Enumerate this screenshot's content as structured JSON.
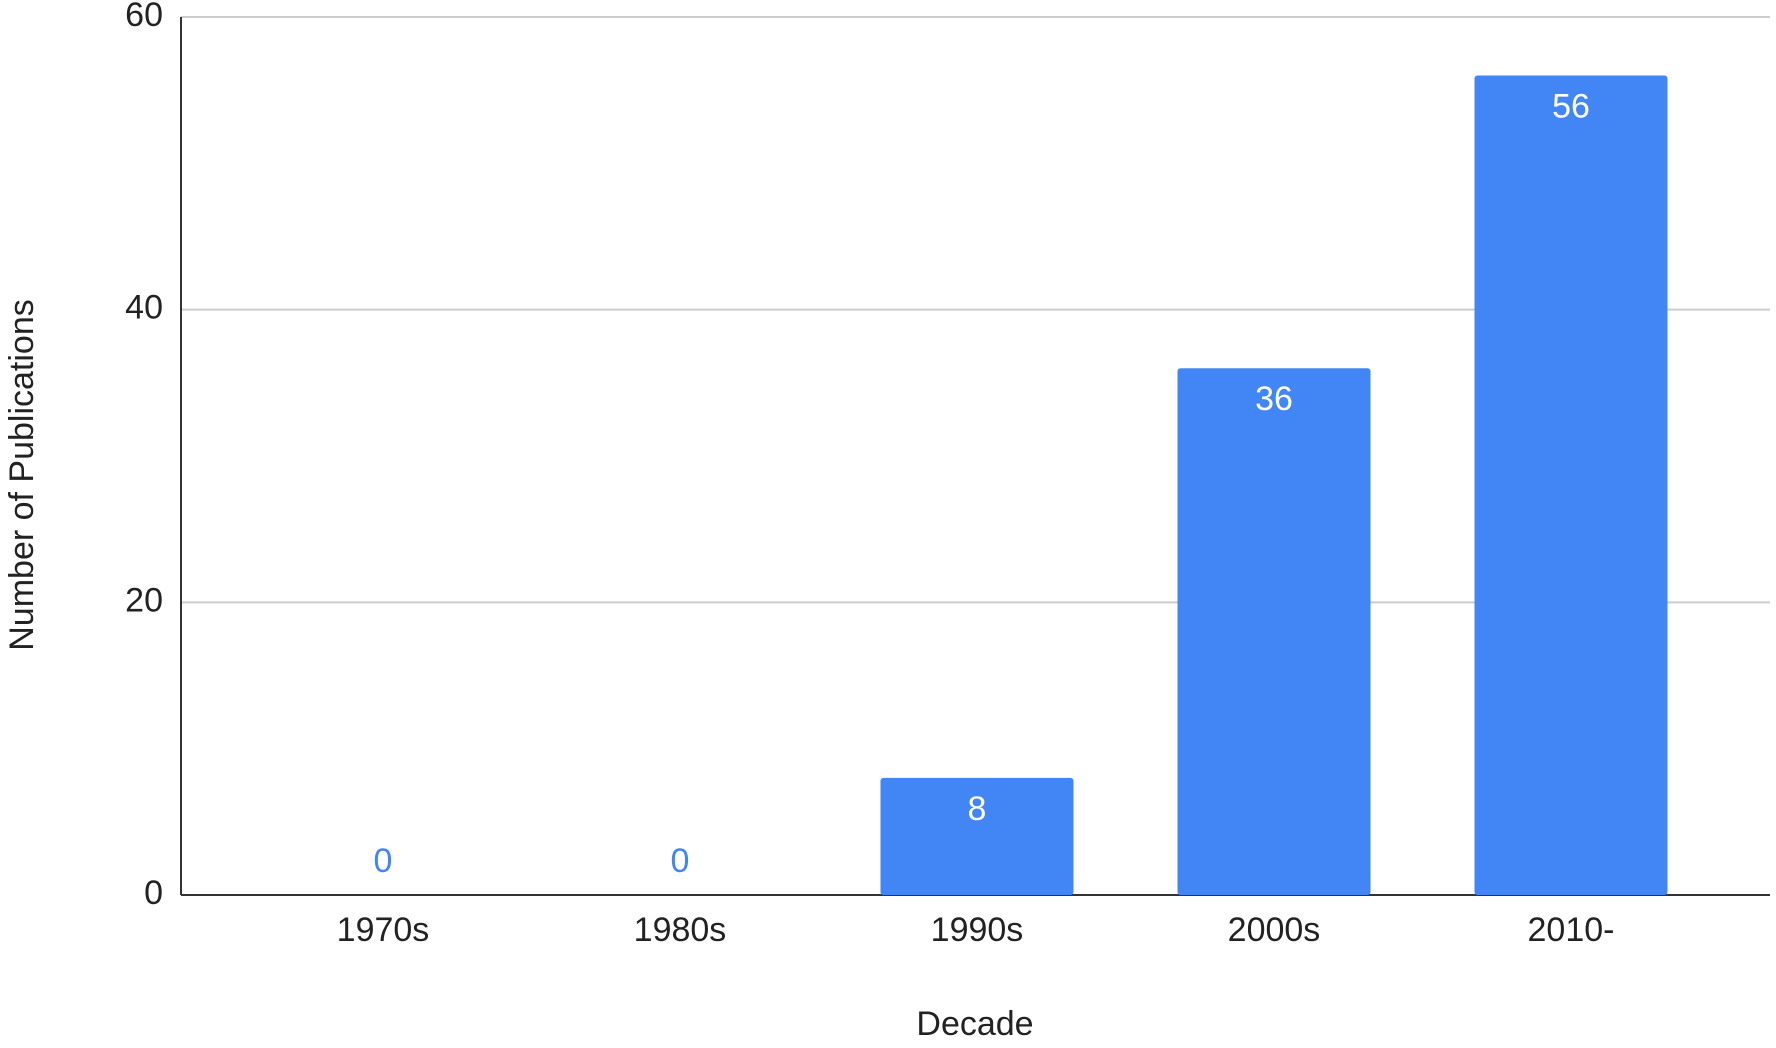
{
  "chart_data": {
    "type": "bar",
    "x_label": "Decade",
    "y_label": "Number of Publications",
    "categories": [
      "1970s",
      "1980s",
      "1990s",
      "2000s",
      "2010-"
    ],
    "values": [
      0,
      0,
      8,
      36,
      56
    ],
    "color": "#4285f4",
    "ylim": [
      0,
      60
    ],
    "yticks": [
      0,
      20,
      40,
      60
    ],
    "grid": true
  }
}
